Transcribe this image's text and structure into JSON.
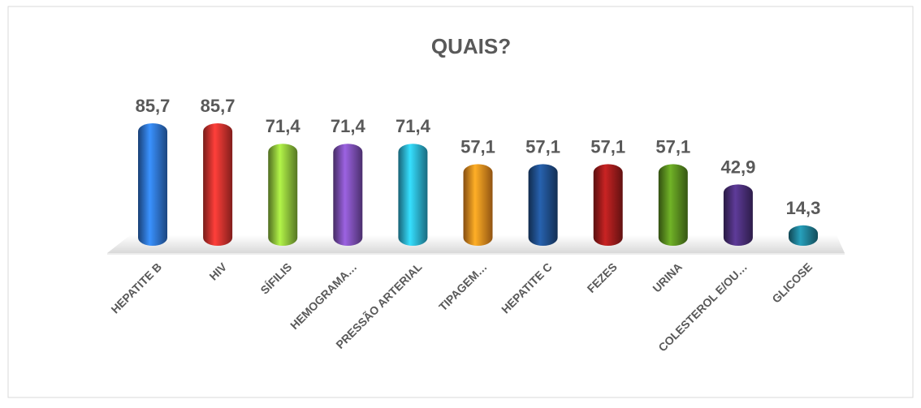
{
  "chart_data": {
    "type": "bar",
    "title": "QUAIS?",
    "categories": [
      "HEPATITE B",
      "HIV",
      "SÍFILIS",
      "HEMOGRAMA…",
      "PRESSÃO ARTERIAL",
      "TIPAGEM…",
      "HEPATITE C",
      "FEZES",
      "URINA",
      "COLESTEROL E/OU…",
      "GLICOSE"
    ],
    "values": [
      85.7,
      85.7,
      71.4,
      71.4,
      71.4,
      57.1,
      57.1,
      57.1,
      57.1,
      42.9,
      14.3
    ],
    "value_labels": [
      "85,7",
      "85,7",
      "71,4",
      "71,4",
      "71,4",
      "57,1",
      "57,1",
      "57,1",
      "57,1",
      "42,9",
      "14,3"
    ],
    "colors": [
      "#2e75d6",
      "#d9322e",
      "#8fc43a",
      "#7d4fb5",
      "#2bb3d6",
      "#f28c1e",
      "#1f4e8c",
      "#a11c1c",
      "#5a8f1f",
      "#4b2f7a",
      "#1f8096"
    ]
  }
}
